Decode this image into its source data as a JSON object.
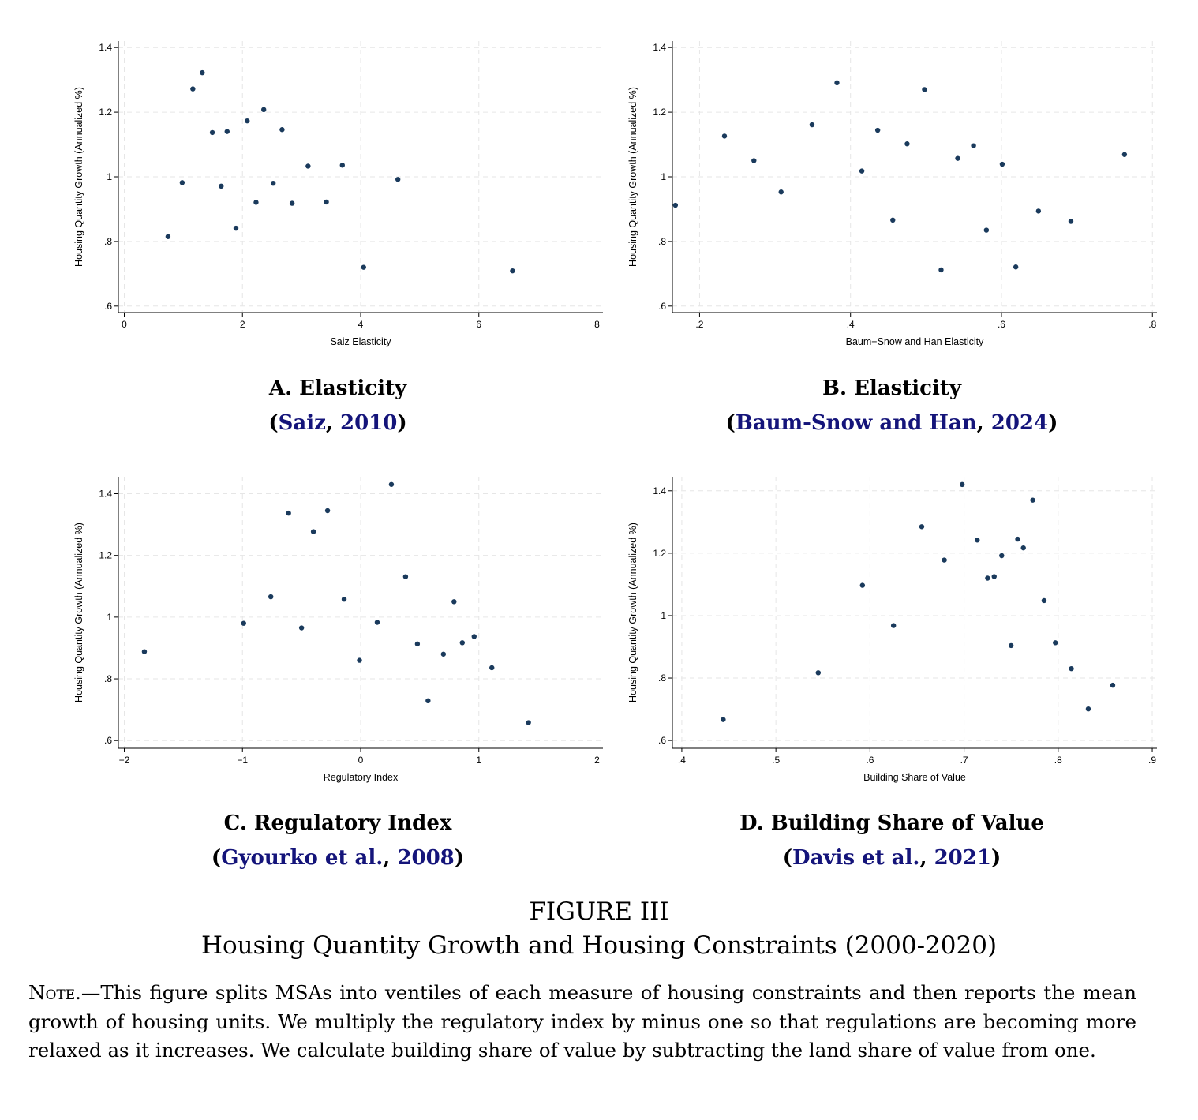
{
  "chart_data": [
    {
      "panel_id": "A",
      "type": "scatter",
      "xlabel": "Saiz Elasticity",
      "ylabel": "Housing Quantity Growth (Annualized %)",
      "xlim": [
        -0.1,
        8.1
      ],
      "ylim": [
        0.58,
        1.42
      ],
      "xticks": [
        0,
        2,
        4,
        6,
        8
      ],
      "xtick_labels": [
        "0",
        "2",
        "4",
        "6",
        "8"
      ],
      "yticks": [
        0.6,
        0.8,
        1.0,
        1.2,
        1.4
      ],
      "ytick_labels": [
        ".6",
        ".8",
        "1",
        "1.2",
        "1.4"
      ],
      "grid": true,
      "points": [
        {
          "x": 0.74,
          "y": 0.815
        },
        {
          "x": 0.98,
          "y": 0.982
        },
        {
          "x": 1.16,
          "y": 1.272
        },
        {
          "x": 1.32,
          "y": 1.322
        },
        {
          "x": 1.49,
          "y": 1.137
        },
        {
          "x": 1.64,
          "y": 0.971
        },
        {
          "x": 1.74,
          "y": 1.14
        },
        {
          "x": 1.89,
          "y": 0.841
        },
        {
          "x": 2.08,
          "y": 1.173
        },
        {
          "x": 2.23,
          "y": 0.921
        },
        {
          "x": 2.36,
          "y": 1.208
        },
        {
          "x": 2.52,
          "y": 0.98
        },
        {
          "x": 2.67,
          "y": 1.146
        },
        {
          "x": 2.84,
          "y": 0.918
        },
        {
          "x": 3.11,
          "y": 1.033
        },
        {
          "x": 3.42,
          "y": 0.922
        },
        {
          "x": 3.69,
          "y": 1.036
        },
        {
          "x": 4.05,
          "y": 0.72
        },
        {
          "x": 4.63,
          "y": 0.992
        },
        {
          "x": 6.57,
          "y": 0.709
        }
      ]
    },
    {
      "panel_id": "B",
      "type": "scatter",
      "xlabel": "Baum−Snow and Han Elasticity",
      "ylabel": "Housing Quantity Growth (Annualized %)",
      "xlim": [
        0.164,
        0.806
      ],
      "ylim": [
        0.58,
        1.42
      ],
      "xticks": [
        0.2,
        0.4,
        0.6,
        0.8
      ],
      "xtick_labels": [
        ".2",
        ".4",
        ".6",
        ".8"
      ],
      "yticks": [
        0.6,
        0.8,
        1.0,
        1.2,
        1.4
      ],
      "ytick_labels": [
        ".6",
        ".8",
        "1",
        "1.2",
        "1.4"
      ],
      "grid": true,
      "points": [
        {
          "x": 0.168,
          "y": 0.912
        },
        {
          "x": 0.233,
          "y": 1.126
        },
        {
          "x": 0.272,
          "y": 1.05
        },
        {
          "x": 0.308,
          "y": 0.953
        },
        {
          "x": 0.349,
          "y": 1.161
        },
        {
          "x": 0.382,
          "y": 1.291
        },
        {
          "x": 0.415,
          "y": 1.018
        },
        {
          "x": 0.436,
          "y": 1.144
        },
        {
          "x": 0.456,
          "y": 0.866
        },
        {
          "x": 0.475,
          "y": 1.102
        },
        {
          "x": 0.498,
          "y": 1.27
        },
        {
          "x": 0.52,
          "y": 0.712
        },
        {
          "x": 0.542,
          "y": 1.057
        },
        {
          "x": 0.563,
          "y": 1.096
        },
        {
          "x": 0.58,
          "y": 0.835
        },
        {
          "x": 0.601,
          "y": 1.039
        },
        {
          "x": 0.619,
          "y": 0.721
        },
        {
          "x": 0.649,
          "y": 0.894
        },
        {
          "x": 0.692,
          "y": 0.862
        },
        {
          "x": 0.763,
          "y": 1.069
        }
      ]
    },
    {
      "panel_id": "C",
      "type": "scatter",
      "xlabel": "Regulatory Index",
      "ylabel": "Housing Quantity Growth (Annualized %)",
      "xlim": [
        -2.05,
        2.05
      ],
      "ylim": [
        0.575,
        1.455
      ],
      "xticks": [
        -2,
        -1,
        0,
        1,
        2
      ],
      "xtick_labels": [
        "−2",
        "−1",
        "0",
        "1",
        "2"
      ],
      "yticks": [
        0.6,
        0.8,
        1.0,
        1.2,
        1.4
      ],
      "ytick_labels": [
        ".6",
        ".8",
        "1",
        "1.2",
        "1.4"
      ],
      "grid": true,
      "points": [
        {
          "x": -1.83,
          "y": 0.888
        },
        {
          "x": -0.99,
          "y": 0.98
        },
        {
          "x": -0.76,
          "y": 1.066
        },
        {
          "x": -0.61,
          "y": 1.337
        },
        {
          "x": -0.5,
          "y": 0.965
        },
        {
          "x": -0.4,
          "y": 1.277
        },
        {
          "x": -0.28,
          "y": 1.345
        },
        {
          "x": -0.14,
          "y": 1.058
        },
        {
          "x": -0.01,
          "y": 0.86
        },
        {
          "x": 0.14,
          "y": 0.983
        },
        {
          "x": 0.26,
          "y": 1.43
        },
        {
          "x": 0.38,
          "y": 1.131
        },
        {
          "x": 0.48,
          "y": 0.913
        },
        {
          "x": 0.57,
          "y": 0.729
        },
        {
          "x": 0.7,
          "y": 0.88
        },
        {
          "x": 0.79,
          "y": 1.05
        },
        {
          "x": 0.86,
          "y": 0.917
        },
        {
          "x": 0.96,
          "y": 0.937
        },
        {
          "x": 1.11,
          "y": 0.836
        },
        {
          "x": 1.42,
          "y": 0.658
        }
      ]
    },
    {
      "panel_id": "D",
      "type": "scatter",
      "xlabel": "Building Share of Value",
      "ylabel": "Housing Quantity Growth (Annualized %)",
      "xlim": [
        0.39,
        0.905
      ],
      "ylim": [
        0.575,
        1.445
      ],
      "xticks": [
        0.4,
        0.5,
        0.6,
        0.7,
        0.8,
        0.9
      ],
      "xtick_labels": [
        ".4",
        ".5",
        ".6",
        ".7",
        ".8",
        ".9"
      ],
      "yticks": [
        0.6,
        0.8,
        1.0,
        1.2,
        1.4
      ],
      "ytick_labels": [
        ".6",
        ".8",
        "1",
        "1.2",
        "1.4"
      ],
      "grid": true,
      "points": [
        {
          "x": 0.444,
          "y": 0.667
        },
        {
          "x": 0.545,
          "y": 0.817
        },
        {
          "x": 0.592,
          "y": 1.097
        },
        {
          "x": 0.625,
          "y": 0.968
        },
        {
          "x": 0.655,
          "y": 1.285
        },
        {
          "x": 0.679,
          "y": 1.178
        },
        {
          "x": 0.698,
          "y": 1.42
        },
        {
          "x": 0.714,
          "y": 1.242
        },
        {
          "x": 0.725,
          "y": 1.12
        },
        {
          "x": 0.732,
          "y": 1.125
        },
        {
          "x": 0.74,
          "y": 1.192
        },
        {
          "x": 0.75,
          "y": 0.904
        },
        {
          "x": 0.757,
          "y": 1.245
        },
        {
          "x": 0.763,
          "y": 1.217
        },
        {
          "x": 0.773,
          "y": 1.37
        },
        {
          "x": 0.785,
          "y": 1.048
        },
        {
          "x": 0.797,
          "y": 0.913
        },
        {
          "x": 0.814,
          "y": 0.83
        },
        {
          "x": 0.832,
          "y": 0.701
        },
        {
          "x": 0.858,
          "y": 0.777
        }
      ]
    }
  ],
  "colors": {
    "marker": "#1a3a5c",
    "grid": "#e6e6e6",
    "citation": "#14147a",
    "axis": "#000000"
  },
  "panels": [
    {
      "title": "A. Elasticity",
      "open": "(",
      "cite_author": "Saiz",
      "sep": ", ",
      "cite_year": "2010",
      "close": ")"
    },
    {
      "title": "B. Elasticity",
      "open": "(",
      "cite_author": "Baum-Snow and Han",
      "sep": ", ",
      "cite_year": "2024",
      "close": ")"
    },
    {
      "title": "C. Regulatory Index",
      "open": "(",
      "cite_author": "Gyourko et al.",
      "sep": ", ",
      "cite_year": "2008",
      "close": ")"
    },
    {
      "title": "D. Building Share of Value",
      "open": "(",
      "cite_author": "Davis et al.",
      "sep": ", ",
      "cite_year": "2021",
      "close": ")"
    }
  ],
  "figure": {
    "label": "FIGURE III",
    "caption": "Housing Quantity Growth and Housing Constraints (2000-2020)"
  },
  "note": {
    "label": "Note.",
    "dash": "—",
    "text": "This figure splits MSAs into ventiles of each measure of housing constraints and then reports the mean growth of housing units. We multiply the regulatory index by minus one so that regulations are becoming more relaxed as it increases. We calculate building share of value by subtracting the land share of value from one."
  }
}
